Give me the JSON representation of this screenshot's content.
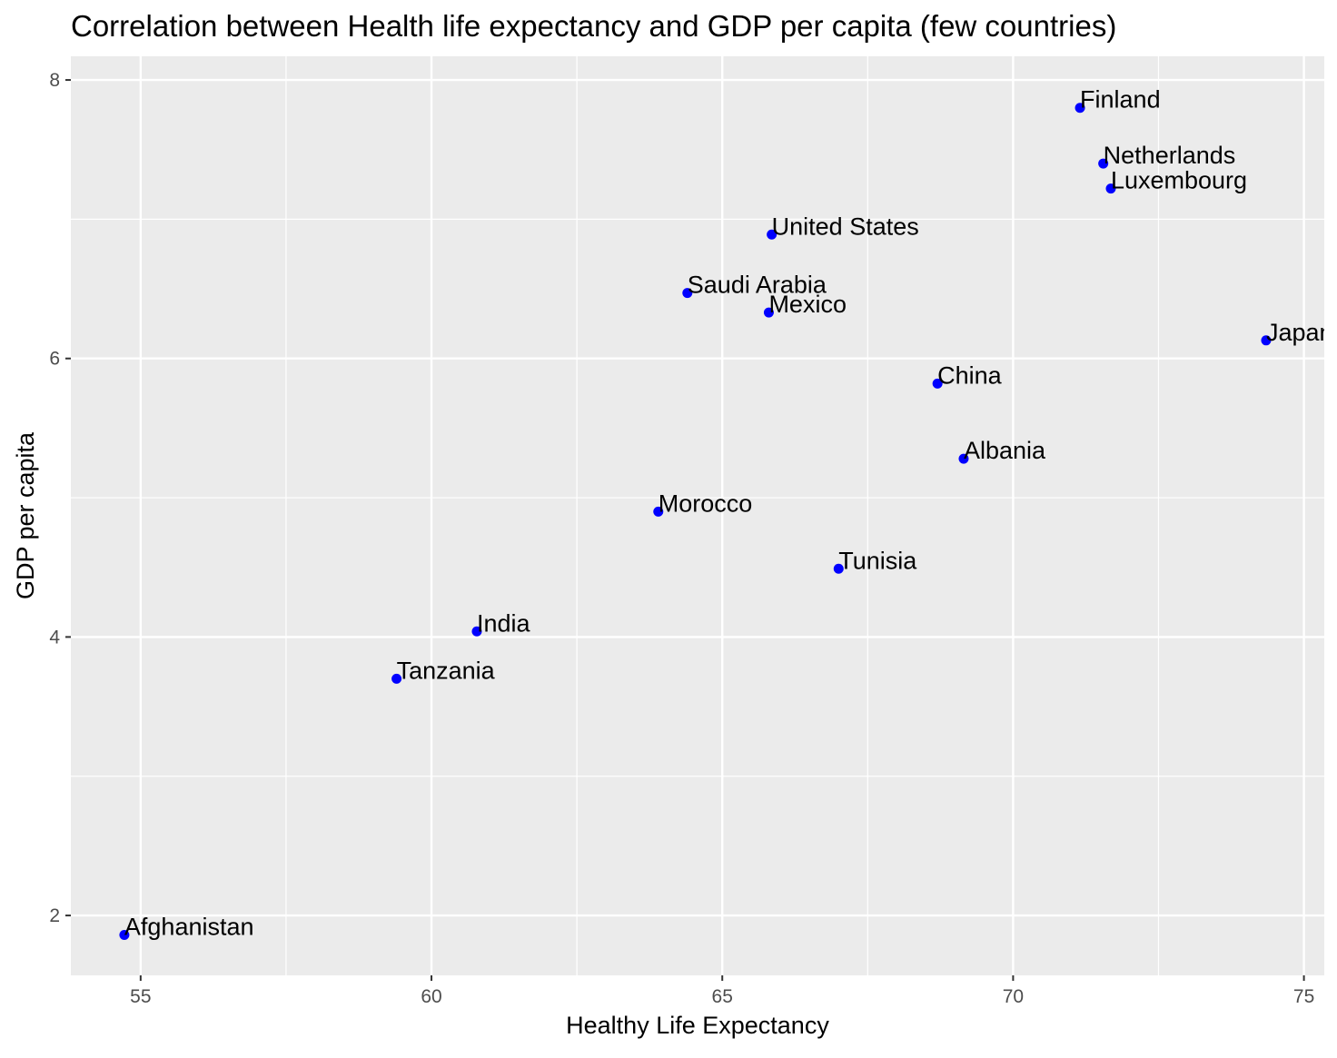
{
  "chart_data": {
    "type": "scatter",
    "title": "Correlation between Health life expectancy and GDP per capita (few countries)",
    "xlabel": "Healthy Life Expectancy",
    "ylabel": "GDP per capita",
    "xlim": [
      53.8,
      75.35
    ],
    "ylim": [
      1.57,
      8.17
    ],
    "x_ticks": [
      55,
      60,
      65,
      70,
      75
    ],
    "y_ticks": [
      2,
      4,
      6,
      8
    ],
    "grid": true,
    "point_color": "#0000FF",
    "panel_background": "#EBEBEB",
    "points": [
      {
        "label": "Finland",
        "x": 71.15,
        "y": 7.8
      },
      {
        "label": "Netherlands",
        "x": 71.55,
        "y": 7.4
      },
      {
        "label": "Luxembourg",
        "x": 71.68,
        "y": 7.22
      },
      {
        "label": "United States",
        "x": 65.85,
        "y": 6.89
      },
      {
        "label": "Saudi Arabia",
        "x": 64.4,
        "y": 6.47
      },
      {
        "label": "Mexico",
        "x": 65.8,
        "y": 6.33
      },
      {
        "label": "Japan",
        "x": 74.35,
        "y": 6.13
      },
      {
        "label": "China",
        "x": 68.7,
        "y": 5.82
      },
      {
        "label": "Albania",
        "x": 69.15,
        "y": 5.28
      },
      {
        "label": "Morocco",
        "x": 63.9,
        "y": 4.9
      },
      {
        "label": "Tunisia",
        "x": 67.0,
        "y": 4.49
      },
      {
        "label": "India",
        "x": 60.78,
        "y": 4.04
      },
      {
        "label": "Tanzania",
        "x": 59.4,
        "y": 3.7
      },
      {
        "label": "Afghanistan",
        "x": 54.72,
        "y": 1.86
      }
    ]
  }
}
